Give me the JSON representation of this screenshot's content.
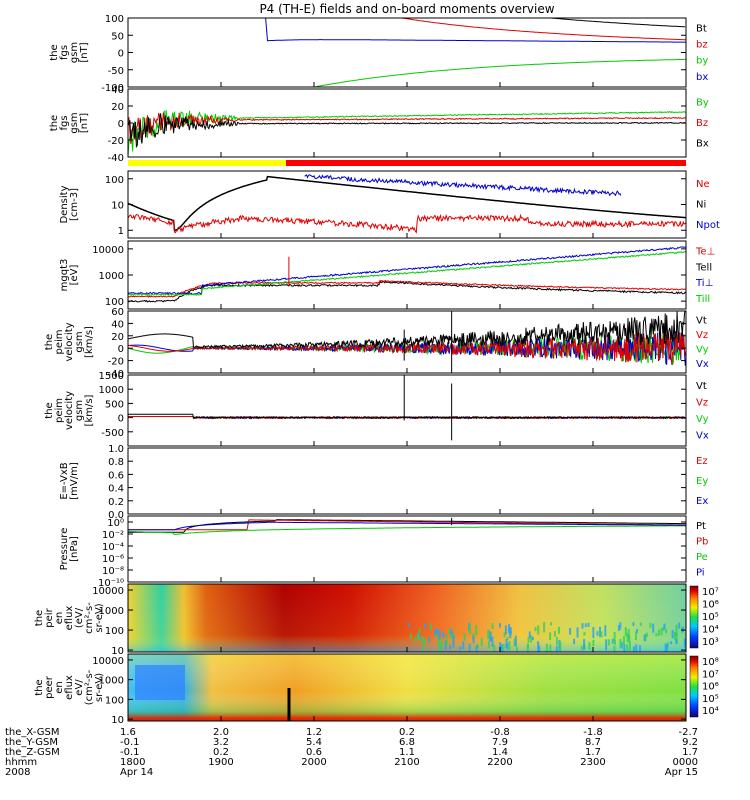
{
  "title": "P4 (TH-E) fields and on-board moments overview",
  "colors": {
    "black": "#000000",
    "red": "#e00000",
    "green": "#00cc00",
    "blue": "#0000cc",
    "yellow": "#ffff00",
    "redbar": "#ff0000"
  },
  "chart_data": [
    {
      "type": "line",
      "ylabel": [
        "the",
        "fgs",
        "gsm",
        "[nT]"
      ],
      "ylim": [
        -100,
        100
      ],
      "ticks": [
        "100",
        "50",
        "0",
        "-50",
        "-100"
      ],
      "tickvals": [
        100,
        50,
        0,
        -50,
        -100
      ],
      "legend": [
        "Bt",
        "bz",
        "by",
        "bx"
      ],
      "legend_colors": [
        "black",
        "red",
        "green",
        "blue"
      ]
    },
    {
      "type": "line",
      "ylabel": [
        "the",
        "fgs",
        "gsm",
        "[nT]"
      ],
      "ylim": [
        -40,
        40
      ],
      "ticks": [
        "40",
        "20",
        "0",
        "-20",
        "-40"
      ],
      "tickvals": [
        40,
        20,
        0,
        -20,
        -40
      ],
      "legend": [
        "By",
        "Bz",
        "Bx"
      ],
      "legend_colors": [
        "green",
        "red",
        "black"
      ]
    },
    {
      "type": "line",
      "log": true,
      "ylabel": [
        "Density",
        "[cm-3]"
      ],
      "ylim": [
        0.5,
        200
      ],
      "ticks": [
        "100",
        "10",
        "1"
      ],
      "tickvals": [
        100,
        10,
        1
      ],
      "legend": [
        "Ne",
        "Ni",
        "Npot"
      ],
      "legend_colors": [
        "red",
        "black",
        "blue"
      ]
    },
    {
      "type": "line",
      "log": true,
      "ylabel": [
        "mgqt3",
        "[eV]"
      ],
      "ylim": [
        50,
        20000
      ],
      "ticks": [
        "10000",
        "1000",
        "100"
      ],
      "tickvals": [
        10000,
        1000,
        100
      ],
      "legend": [
        "Te⊥",
        "Tell",
        "Ti⊥",
        "Till"
      ],
      "legend_colors": [
        "red",
        "black",
        "blue",
        "green"
      ]
    },
    {
      "type": "line",
      "ylabel": [
        "the",
        "peim",
        "velocity",
        "gsm",
        "[km/s]"
      ],
      "ylim": [
        -40,
        60
      ],
      "ticks": [
        "60",
        "40",
        "20",
        "0",
        "-20",
        "-40"
      ],
      "tickvals": [
        60,
        40,
        20,
        0,
        -20,
        -40
      ],
      "legend": [
        "Vt",
        "Vz",
        "Vy",
        "Vx"
      ],
      "legend_colors": [
        "black",
        "red",
        "green",
        "blue"
      ]
    },
    {
      "type": "line",
      "ylabel": [
        "the",
        "peim",
        "velocity",
        "gsm",
        "[km/s]"
      ],
      "ylim": [
        -1000,
        1500
      ],
      "ticks": [
        "1500",
        "1000",
        "500",
        "0",
        "-500"
      ],
      "tickvals": [
        1500,
        1000,
        500,
        0,
        -500
      ],
      "legend": [
        "Vt",
        "Vz",
        "Vy",
        "Vx"
      ],
      "legend_colors": [
        "black",
        "red",
        "green",
        "blue"
      ]
    },
    {
      "type": "line",
      "ylabel": [
        "E=-VxB",
        "[mV/m]"
      ],
      "ylim": [
        0,
        1
      ],
      "ticks": [
        "1.0",
        "0.8",
        "0.6",
        "0.4",
        "0.2",
        "0.0"
      ],
      "tickvals": [
        1,
        0.8,
        0.6,
        0.4,
        0.2,
        0
      ],
      "legend": [
        "Ez",
        "Ey",
        "Ex"
      ],
      "legend_colors": [
        "red",
        "green",
        "blue"
      ]
    },
    {
      "type": "line",
      "log": true,
      "ylabel": [
        "Pressure",
        "[nPa]"
      ],
      "ylim": [
        1e-10,
        10.0
      ],
      "ticks": [
        "10⁰",
        "10⁻²",
        "10⁻⁴",
        "10⁻⁶",
        "10⁻⁸",
        "10⁻¹⁰"
      ],
      "tickvals": [
        1,
        0.01,
        0.0001,
        1e-06,
        1e-08,
        1e-10
      ],
      "legend": [
        "Pt",
        "Pb",
        "Pe",
        "Pi"
      ],
      "legend_colors": [
        "black",
        "red",
        "green",
        "blue"
      ]
    },
    {
      "type": "heatmap",
      "log": true,
      "ylabel": [
        "the",
        "peir",
        "en",
        "eflux",
        "(eV/",
        "cm²-s-",
        "sr-eV)"
      ],
      "ylim": [
        8,
        20000
      ],
      "ticks": [
        "10000",
        "1000",
        "100",
        "10"
      ],
      "tickvals": [
        10000,
        1000,
        100,
        10
      ],
      "colorbar_ticks": [
        "10⁷",
        "10⁶",
        "10⁵",
        "10⁴",
        "10³"
      ]
    },
    {
      "type": "heatmap",
      "log": true,
      "ylabel": [
        "the",
        "peer",
        "en",
        "eflux",
        "eV/",
        "(cm²-s-",
        "sr-eV)"
      ],
      "ylim": [
        8,
        20000
      ],
      "ticks": [
        "10000",
        "1000",
        "100",
        "10"
      ],
      "tickvals": [
        10000,
        1000,
        100,
        10
      ],
      "colorbar_ticks": [
        "10⁸",
        "10⁷",
        "10⁶",
        "10⁵",
        "10⁴"
      ]
    }
  ],
  "x_axis": {
    "rows": [
      {
        "label": "the_X-GSM",
        "values": [
          "1.6",
          "2.0",
          "1.2",
          "0.2",
          "-0.8",
          "-1.8",
          "-2.7"
        ]
      },
      {
        "label": "the_Y-GSM",
        "values": [
          "-0.1",
          "3.2",
          "5.4",
          "6.8",
          "7.9",
          "8.7",
          "9.2"
        ]
      },
      {
        "label": "the_Z-GSM",
        "values": [
          "-0.1",
          "0.2",
          "0.6",
          "1.1",
          "1.4",
          "1.7",
          "1.7"
        ]
      },
      {
        "label": "hhmm",
        "values": [
          "1800",
          "1900",
          "2000",
          "2100",
          "2200",
          "2300",
          "0000"
        ]
      },
      {
        "label": "2008",
        "values": [
          "Apr 14",
          "",
          "",
          "",
          "",
          "",
          "Apr 15"
        ]
      }
    ],
    "hours": [
      0,
      1,
      2,
      3,
      4,
      5,
      6
    ]
  }
}
